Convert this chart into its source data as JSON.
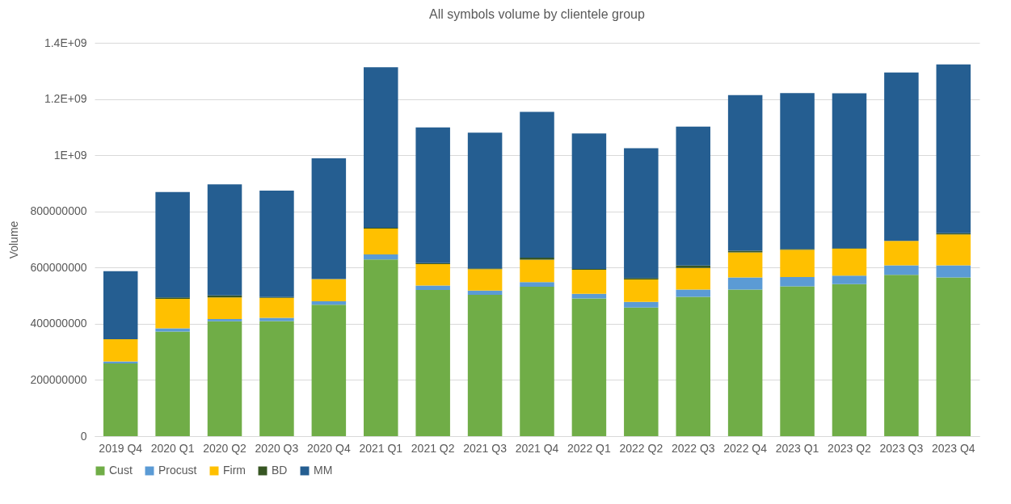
{
  "chart_data": {
    "type": "bar",
    "title": "All symbols volume by clientele group",
    "ylabel": "Volume",
    "stacked": true,
    "grid": "y",
    "legend": "bottom",
    "categories": [
      "2019 Q4",
      "2020 Q1",
      "2020 Q2",
      "2020 Q3",
      "2020 Q4",
      "2021 Q1",
      "2021 Q2",
      "2021 Q3",
      "2021 Q4",
      "2022 Q1",
      "2022 Q2",
      "2022 Q3",
      "2022 Q4",
      "2023 Q1",
      "2023 Q2",
      "2023 Q3",
      "2023 Q4"
    ],
    "series": [
      {
        "name": "Cust",
        "color": "#70ad47",
        "values": [
          259000000,
          372000000,
          409000000,
          410000000,
          468000000,
          629000000,
          520000000,
          503000000,
          532000000,
          490000000,
          458000000,
          496000000,
          522000000,
          533000000,
          541000000,
          574000000,
          565000000
        ]
      },
      {
        "name": "Procust",
        "color": "#5b9bd5",
        "values": [
          7000000,
          12000000,
          8000000,
          11000000,
          12000000,
          18000000,
          16000000,
          15000000,
          16000000,
          17000000,
          20000000,
          26000000,
          43000000,
          33000000,
          30000000,
          34000000,
          43000000
        ]
      },
      {
        "name": "Firm",
        "color": "#ffc000",
        "values": [
          79000000,
          105000000,
          77000000,
          71000000,
          79000000,
          92000000,
          76000000,
          76000000,
          80000000,
          85000000,
          80000000,
          77000000,
          89000000,
          97000000,
          96000000,
          87000000,
          110000000
        ]
      },
      {
        "name": "BD",
        "color": "#375623",
        "values": [
          null,
          5000000,
          7000000,
          3000000,
          null,
          3000000,
          4000000,
          3000000,
          7000000,
          3000000,
          5000000,
          8000000,
          6000000,
          3000000,
          2000000,
          null,
          4000000
        ]
      },
      {
        "name": "MM",
        "color": "#255e91",
        "values": [
          242000000,
          375000000,
          395000000,
          379000000,
          430000000,
          571000000,
          483000000,
          483000000,
          519000000,
          482000000,
          462000000,
          495000000,
          554000000,
          555000000,
          551000000,
          599000000,
          601000000
        ]
      }
    ],
    "ylim": [
      0,
      1400000000
    ],
    "yticks": [
      0,
      200000000,
      400000000,
      600000000,
      800000000,
      {
        "value": 1000000000,
        "label": "1E+09"
      },
      {
        "value": 1200000000,
        "label": "1.2E+09"
      },
      {
        "value": 1400000000,
        "label": "1.4E+09"
      }
    ]
  }
}
